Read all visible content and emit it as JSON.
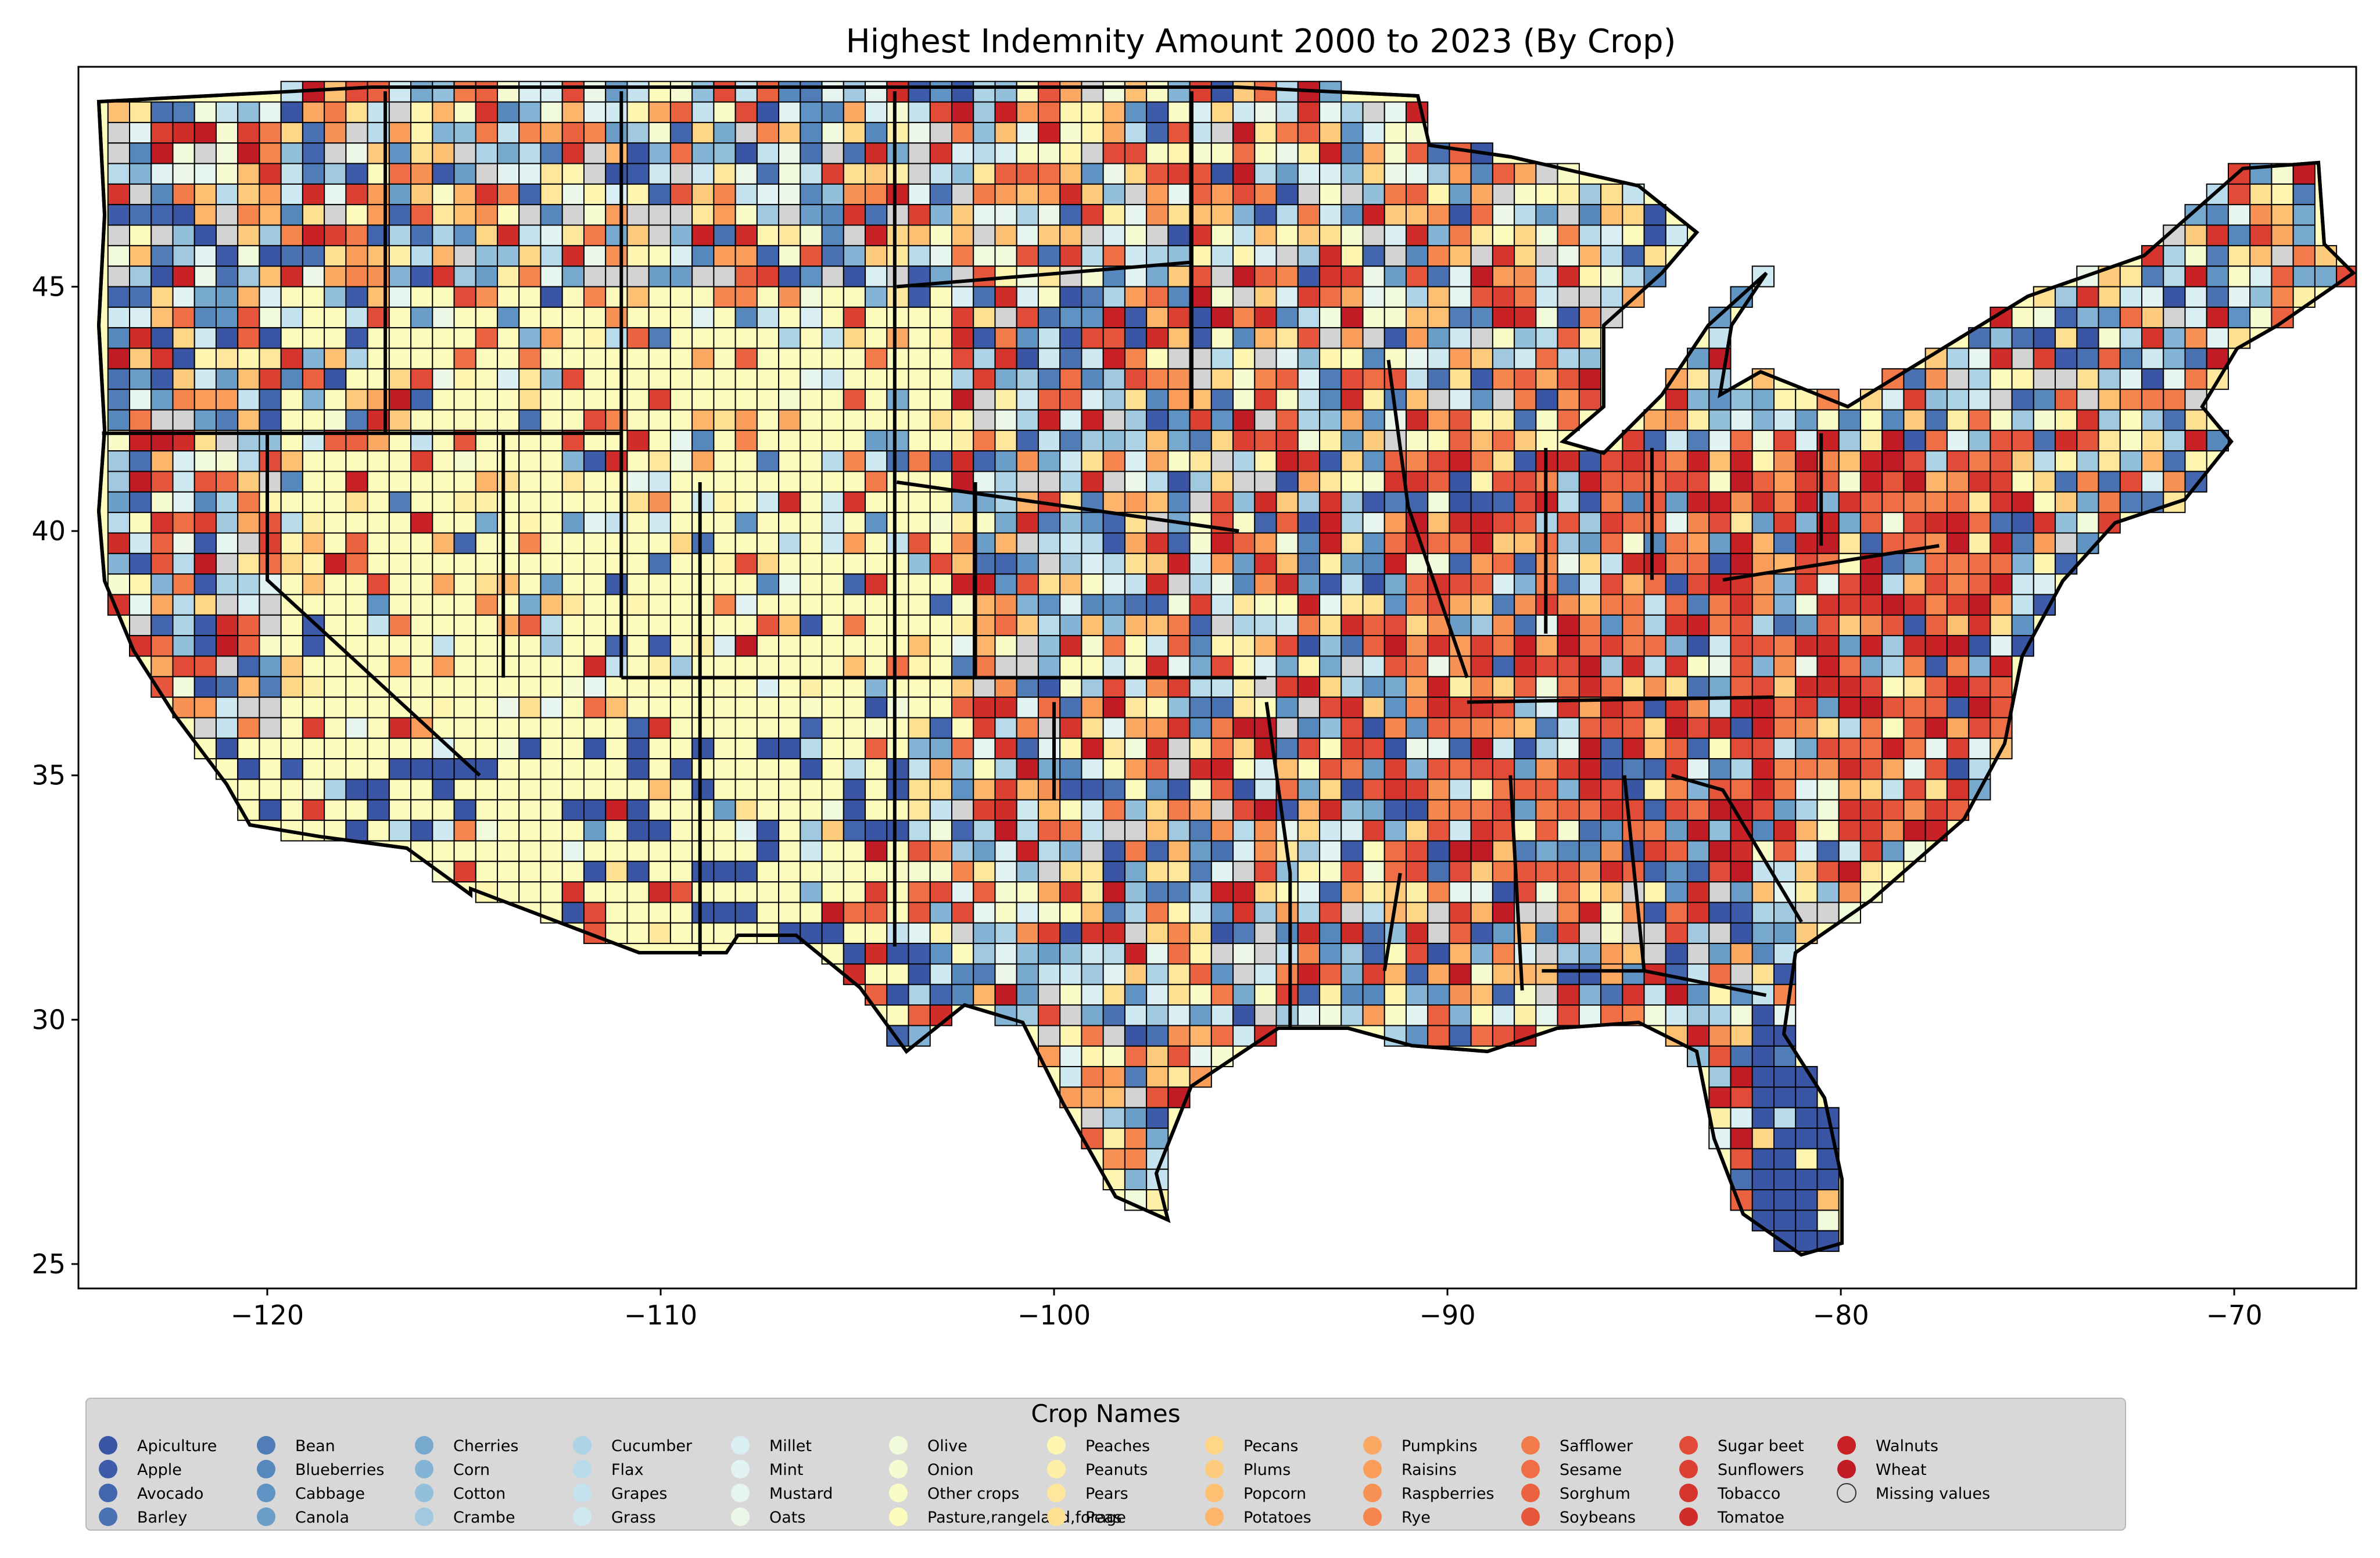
{
  "chart_data": {
    "type": "choropleth-map",
    "title": "Highest Indemnity Amount 2000 to 2023 (By Crop)",
    "xlim": [
      -124.8,
      -66.9
    ],
    "ylim": [
      24.5,
      49.5
    ],
    "x_ticks": [
      -120,
      -110,
      -100,
      -90,
      -80,
      -70
    ],
    "x_tick_labels": [
      "−120",
      "−110",
      "−100",
      "−90",
      "−80",
      "−70"
    ],
    "y_ticks": [
      25,
      30,
      35,
      40,
      45
    ],
    "y_tick_labels": [
      "25",
      "30",
      "35",
      "40",
      "45"
    ],
    "legend": {
      "title": "Crop Names",
      "placement": "bottom",
      "columns": 13,
      "entries": [
        {
          "label": "Apiculture",
          "color": "#3a55a4"
        },
        {
          "label": "Apple",
          "color": "#3d5ba8"
        },
        {
          "label": "Avocado",
          "color": "#4265ae"
        },
        {
          "label": "Barley",
          "color": "#4a72b3"
        },
        {
          "label": "Bean",
          "color": "#507cb8"
        },
        {
          "label": "Blueberries",
          "color": "#5687bd"
        },
        {
          "label": "Cabbage",
          "color": "#5f93c4"
        },
        {
          "label": "Canola",
          "color": "#6a9ec9"
        },
        {
          "label": "Cherries",
          "color": "#77a9cf"
        },
        {
          "label": "Corn",
          "color": "#84b4d5"
        },
        {
          "label": "Cotton",
          "color": "#92bfdb"
        },
        {
          "label": "Crambe",
          "color": "#a0c9e0"
        },
        {
          "label": "Cucumber",
          "color": "#acd3e6"
        },
        {
          "label": "Flax",
          "color": "#b8dbeb"
        },
        {
          "label": "Grapes",
          "color": "#c4e3ef"
        },
        {
          "label": "Grass",
          "color": "#cfe9f2"
        },
        {
          "label": "Millet",
          "color": "#d9eff4"
        },
        {
          "label": "Mint",
          "color": "#e1f3f3"
        },
        {
          "label": "Mustard",
          "color": "#e7f5ef"
        },
        {
          "label": "Oats",
          "color": "#ecf7e8"
        },
        {
          "label": "Olive",
          "color": "#f2fadc"
        },
        {
          "label": "Onion",
          "color": "#f6fbd2"
        },
        {
          "label": "Other crops",
          "color": "#fafcc8"
        },
        {
          "label": "Pasture,rangeland,forage",
          "color": "#fefcbc"
        },
        {
          "label": "Peaches",
          "color": "#fef6b0"
        },
        {
          "label": "Peanuts",
          "color": "#feefa6"
        },
        {
          "label": "Pears",
          "color": "#fee79c"
        },
        {
          "label": "Peas",
          "color": "#fee092"
        },
        {
          "label": "Pecans",
          "color": "#fed686"
        },
        {
          "label": "Plums",
          "color": "#fdcb7c"
        },
        {
          "label": "Popcorn",
          "color": "#fdc073"
        },
        {
          "label": "Potatoes",
          "color": "#fcb56b"
        },
        {
          "label": "Pumpkins",
          "color": "#fba962"
        },
        {
          "label": "Raisins",
          "color": "#fa9d5a"
        },
        {
          "label": "Raspberries",
          "color": "#f89154"
        },
        {
          "label": "Rye",
          "color": "#f6854e"
        },
        {
          "label": "Safflower",
          "color": "#f37a4a"
        },
        {
          "label": "Sesame",
          "color": "#ef6e45"
        },
        {
          "label": "Sorghum",
          "color": "#eb6241"
        },
        {
          "label": "Soybeans",
          "color": "#e6563c"
        },
        {
          "label": "Sugar beet",
          "color": "#e14b37"
        },
        {
          "label": "Sunflowers",
          "color": "#dc4032"
        },
        {
          "label": "Tobacco",
          "color": "#d6352d"
        },
        {
          "label": "Tomatoe",
          "color": "#d02c29"
        },
        {
          "label": "Walnuts",
          "color": "#c82227"
        },
        {
          "label": "Wheat",
          "color": "#c11b26"
        },
        {
          "label": "Missing values",
          "color": "#d3d3d3"
        }
      ]
    }
  }
}
